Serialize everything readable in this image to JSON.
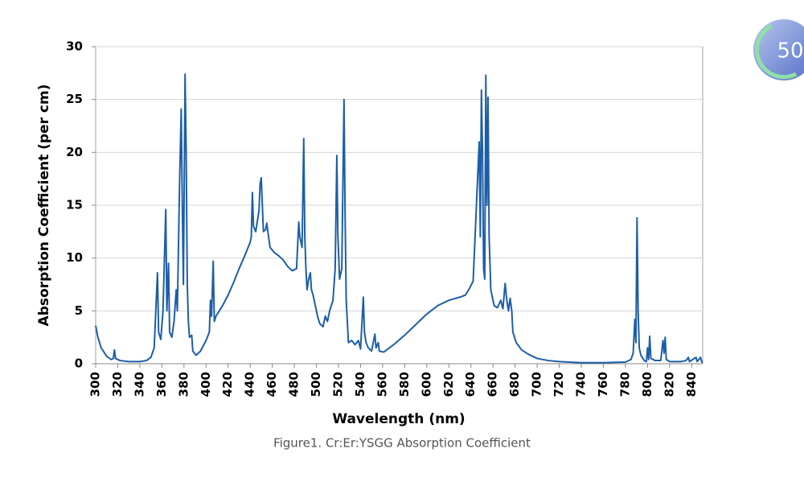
{
  "progress_badge": "50",
  "chart_data": {
    "type": "line",
    "x_label": "Wavelength (nm)",
    "y_label": "Absorption Coefficient (per cm)",
    "caption": "Figure1. Cr:Er:YSGG Absorption Coefficient",
    "xlim": [
      300,
      850
    ],
    "ylim": [
      0,
      30
    ],
    "xticks": [
      300,
      320,
      340,
      360,
      380,
      400,
      420,
      440,
      460,
      480,
      500,
      520,
      540,
      560,
      580,
      600,
      620,
      640,
      660,
      680,
      700,
      720,
      740,
      760,
      780,
      800,
      820,
      840
    ],
    "yticks": [
      0,
      5,
      10,
      15,
      20,
      25,
      30
    ],
    "grid": true,
    "series": [
      {
        "color": "#1d5ea8",
        "x": [
          300,
          302,
          305,
          310,
          314,
          316,
          317,
          318,
          322,
          330,
          340,
          346,
          350,
          353,
          356,
          357,
          359,
          361,
          363.5,
          364.5,
          366,
          367,
          369,
          371,
          373,
          374,
          376,
          377.5,
          378.5,
          379.5,
          381,
          382,
          383,
          384,
          385,
          387,
          388,
          391,
          395,
          400,
          403,
          404,
          405,
          406.5,
          407.5,
          409,
          412,
          415,
          420,
          425,
          430,
          435,
          440,
          441,
          442,
          443,
          445,
          448,
          449,
          450,
          451,
          452,
          454,
          455,
          456,
          458,
          462,
          466,
          470,
          474,
          478,
          482,
          484,
          485,
          487,
          488.5,
          489.5,
          490.5,
          491.5,
          493,
          494.5,
          495.5,
          497,
          499,
          501,
          503,
          506,
          508,
          510,
          512,
          515,
          517,
          518.5,
          519.5,
          521,
          523,
          525,
          526,
          527,
          528,
          529,
          532,
          535,
          538,
          540,
          542.5,
          543.5,
          545,
          547,
          550,
          553,
          554,
          556,
          557,
          561,
          570,
          580,
          590,
          600,
          610,
          620,
          630,
          635,
          638,
          642,
          647.5,
          648.5,
          649.5,
          650.5,
          651.5,
          652.5,
          653.5,
          654.5,
          655.5,
          656.5,
          658,
          661,
          664,
          667,
          669,
          671,
          672.5,
          674,
          675.5,
          677,
          678,
          681,
          686,
          692,
          700,
          710,
          720,
          740,
          760,
          780,
          785,
          787,
          788.5,
          789.5,
          790.5,
          791.5,
          792.5,
          794,
          797,
          799,
          800,
          801,
          802,
          803,
          807,
          812,
          814,
          815,
          816,
          817,
          820,
          830,
          835,
          837,
          838,
          844,
          845,
          848,
          849,
          850
        ],
        "values": [
          3.6,
          2.5,
          1.5,
          0.7,
          0.4,
          0.5,
          1.3,
          0.5,
          0.3,
          0.2,
          0.2,
          0.3,
          0.6,
          1.5,
          8.6,
          3,
          2.3,
          5,
          14.6,
          5,
          9.5,
          3,
          2.5,
          4,
          7,
          5,
          17,
          24.1,
          15,
          7.5,
          27.4,
          20,
          7.5,
          4,
          2.5,
          2.7,
          1.2,
          0.8,
          1.2,
          2.2,
          3,
          6,
          4.5,
          9.7,
          4,
          4.5,
          5,
          5.5,
          6.5,
          7.7,
          9,
          10.2,
          11.5,
          12,
          16.2,
          13,
          12.5,
          14.5,
          17,
          17.6,
          15,
          12.5,
          12.7,
          13.3,
          12.5,
          11,
          10.5,
          10.2,
          9.8,
          9.2,
          8.8,
          9,
          13.4,
          12,
          11,
          21.3,
          12,
          9,
          7,
          8,
          8.6,
          7,
          6.5,
          5.5,
          4.5,
          3.8,
          3.5,
          4.5,
          4,
          5,
          6,
          9,
          19.7,
          12,
          8,
          9,
          25,
          14,
          6,
          4,
          2,
          2.2,
          1.8,
          2.2,
          1.4,
          6.3,
          3,
          2,
          1.5,
          1.2,
          2.8,
          1.5,
          2,
          1.2,
          1.1,
          1.8,
          2.7,
          3.7,
          4.7,
          5.5,
          6,
          6.3,
          6.5,
          7,
          7.8,
          21,
          12,
          25.9,
          20,
          9,
          8,
          27.3,
          15,
          25.2,
          12,
          7,
          5.5,
          5.3,
          6,
          5.2,
          7.6,
          6,
          5,
          6.2,
          5,
          3,
          2,
          1.3,
          0.9,
          0.5,
          0.3,
          0.2,
          0.1,
          0.1,
          0.15,
          0.4,
          1,
          4.2,
          2,
          13.8,
          5,
          1.5,
          0.8,
          0.3,
          0.2,
          1.5,
          0.4,
          2.6,
          0.5,
          0.3,
          0.3,
          2.2,
          1,
          2.5,
          0.4,
          0.2,
          0.2,
          0.3,
          0.6,
          0.2,
          0.6,
          0.2,
          0.6,
          0.2,
          0.1
        ]
      }
    ]
  }
}
